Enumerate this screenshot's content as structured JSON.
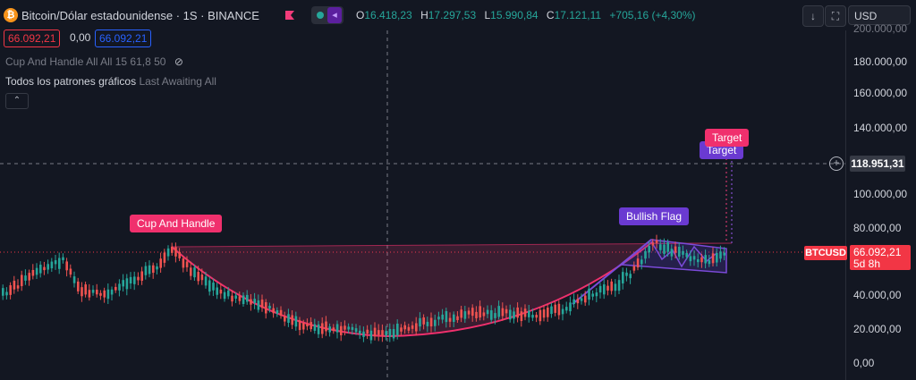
{
  "header": {
    "symbol_title": "Bitcoin/Dólar estadounidense · 1S · BINANCE",
    "ohlc": {
      "o_label": "O",
      "o": "16.418,23",
      "h_label": "H",
      "h": "17.297,53",
      "l_label": "L",
      "l": "15.990,84",
      "c_label": "C",
      "c": "17.121,11",
      "change": "+705,16 (+4,30%)"
    },
    "currency": "USD",
    "colors": {
      "up": "#26a69a",
      "down": "#ef5350",
      "accent": "#f23645"
    }
  },
  "price_boxes": {
    "sell": "66.092,21",
    "spread": "0,00",
    "buy": "66.092,21"
  },
  "indicators": {
    "cup_line": "Cup And Handle All All 15 61,8 50",
    "patterns_name": "Todos los patrones gráficos",
    "patterns_args": "Last Awaiting All"
  },
  "price_axis": {
    "labels": [
      "200.000,00",
      "180.000,00",
      "160.000,00",
      "140.000,00",
      "100.000,00",
      "80.000,00",
      "40.000,00",
      "20.000,00",
      "0,00"
    ],
    "crosshair_price": "118.951,31",
    "symbol_tag": "BTCUSD",
    "last_price": "66.092,21",
    "countdown": "5d 8h"
  },
  "chart_labels": {
    "cup_and_handle": "Cup And Handle",
    "bullish_flag": "Bullish Flag",
    "target_purple": "Target",
    "target_pink": "Target"
  }
}
